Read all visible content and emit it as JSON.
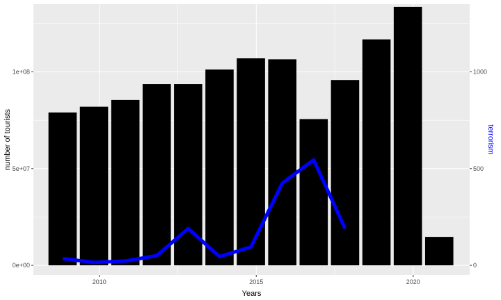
{
  "chart_data": {
    "type": "bar",
    "title": "",
    "xlabel": "Years",
    "ylabel": "number of tourists",
    "y2label": "terrorism",
    "xlim": [
      2007.9,
      2021.8
    ],
    "ylim": [
      -5000000,
      135000000
    ],
    "y2lim": [
      -50,
      1350
    ],
    "grid": true,
    "legend": "none",
    "x_ticks": [
      2010,
      2015,
      2020
    ],
    "y_ticks": [
      0,
      50000000,
      100000000
    ],
    "y_tick_labels": [
      "0e+00",
      "5e+07",
      "1e+08"
    ],
    "y2_ticks": [
      0,
      500,
      1000
    ],
    "y2_tick_labels": [
      "0",
      "500",
      "1000"
    ],
    "series": [
      {
        "type": "bar",
        "color": "#000000",
        "x": [
          2008.83,
          2009.83,
          2010.83,
          2011.83,
          2012.83,
          2013.83,
          2014.83,
          2015.83,
          2016.83,
          2017.83,
          2018.83,
          2019.83,
          2020.83
        ],
        "values": [
          79000000,
          82000000,
          85500000,
          93700000,
          93700000,
          101200000,
          107000000,
          106500000,
          75600000,
          95800000,
          116800000,
          133600000,
          14700000
        ]
      },
      {
        "type": "line",
        "color": "#0000ff",
        "axis": "right",
        "x": [
          2008.83,
          2009.83,
          2010.83,
          2011.83,
          2012.83,
          2013.83,
          2014.83,
          2015.83,
          2016.83,
          2017.83
        ],
        "values": [
          35,
          15,
          22,
          50,
          190,
          45,
          95,
          425,
          545,
          190
        ]
      }
    ]
  }
}
